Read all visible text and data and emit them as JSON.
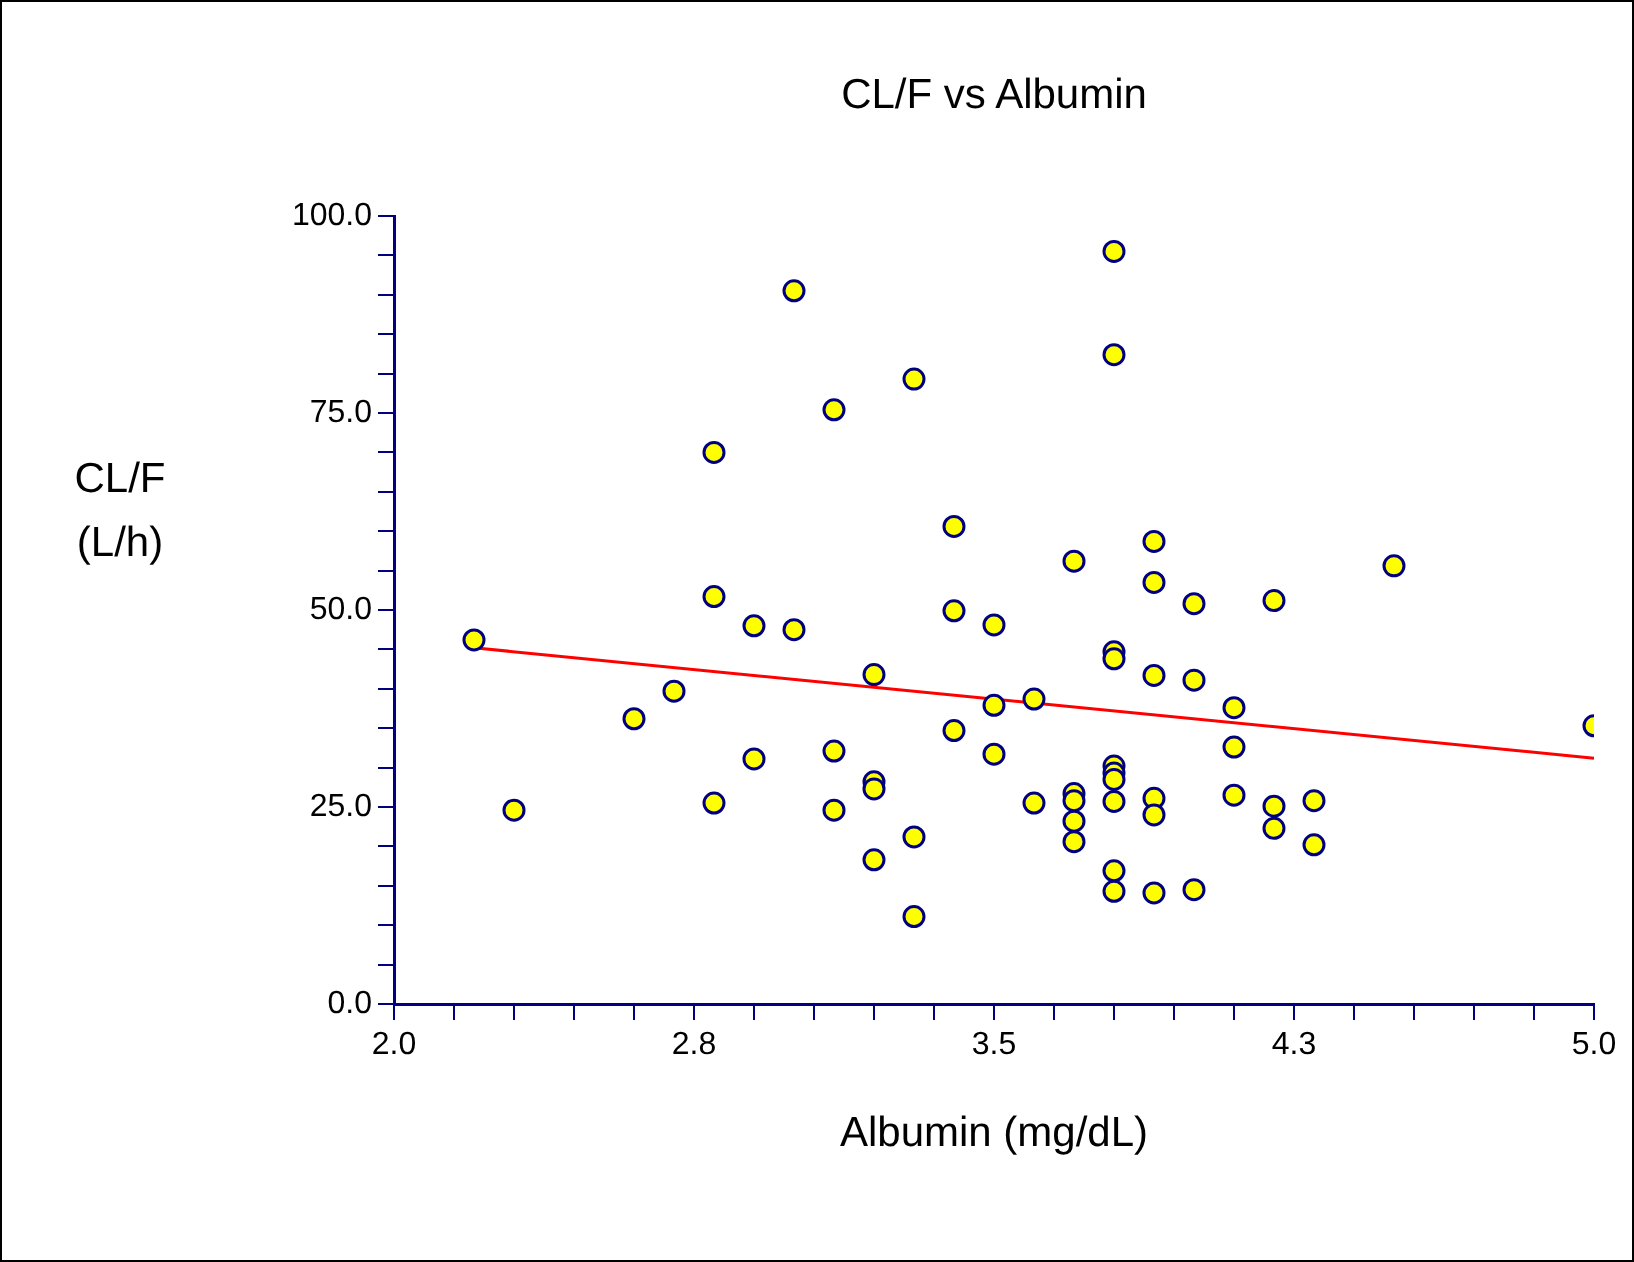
{
  "chart_data": {
    "type": "scatter",
    "title": "CL/F vs Albumin",
    "xlabel": "Albumin (mg/dL)",
    "ylabel": "CL/F\n(L/h)",
    "xlim": [
      2.0,
      5.0
    ],
    "ylim": [
      0,
      100
    ],
    "xticks": [
      {
        "value": 2.0,
        "label": "2.0"
      },
      {
        "value": 2.15,
        "label": null
      },
      {
        "value": 2.3,
        "label": null
      },
      {
        "value": 2.45,
        "label": null
      },
      {
        "value": 2.6,
        "label": null
      },
      {
        "value": 2.75,
        "label": "2.8"
      },
      {
        "value": 2.9,
        "label": null
      },
      {
        "value": 3.05,
        "label": null
      },
      {
        "value": 3.2,
        "label": null
      },
      {
        "value": 3.35,
        "label": null
      },
      {
        "value": 3.5,
        "label": "3.5"
      },
      {
        "value": 3.65,
        "label": null
      },
      {
        "value": 3.8,
        "label": null
      },
      {
        "value": 3.95,
        "label": null
      },
      {
        "value": 4.1,
        "label": null
      },
      {
        "value": 4.25,
        "label": "4.3"
      },
      {
        "value": 4.4,
        "label": null
      },
      {
        "value": 4.55,
        "label": null
      },
      {
        "value": 4.7,
        "label": null
      },
      {
        "value": 4.85,
        "label": null
      },
      {
        "value": 5.0,
        "label": "5.0"
      }
    ],
    "yticks": [
      {
        "value": 0,
        "label": "0.0"
      },
      {
        "value": 5,
        "label": null
      },
      {
        "value": 10,
        "label": null
      },
      {
        "value": 15,
        "label": null
      },
      {
        "value": 20,
        "label": null
      },
      {
        "value": 25,
        "label": "25.0"
      },
      {
        "value": 30,
        "label": null
      },
      {
        "value": 35,
        "label": null
      },
      {
        "value": 40,
        "label": null
      },
      {
        "value": 45,
        "label": null
      },
      {
        "value": 50,
        "label": "50.0"
      },
      {
        "value": 55,
        "label": null
      },
      {
        "value": 60,
        "label": null
      },
      {
        "value": 65,
        "label": null
      },
      {
        "value": 70,
        "label": null
      },
      {
        "value": 75,
        "label": "75.0"
      },
      {
        "value": 80,
        "label": null
      },
      {
        "value": 85,
        "label": null
      },
      {
        "value": 90,
        "label": null
      },
      {
        "value": 95,
        "label": null
      },
      {
        "value": 100,
        "label": "100.0"
      }
    ],
    "grid": false,
    "legend": false,
    "marker": "circle",
    "series": [
      {
        "type": "scatter",
        "color": "#ffff00",
        "x": [
          3.0,
          3.3,
          3.1,
          2.8,
          3.4,
          2.8,
          3.4,
          3.8,
          3.8,
          3.9,
          3.7,
          4.5,
          3.9,
          4.0,
          4.2,
          2.2,
          2.9,
          3.0,
          3.5,
          3.2,
          2.7,
          2.6,
          3.5,
          3.4,
          2.9,
          3.1,
          3.5,
          3.2,
          3.2,
          2.3,
          2.8,
          3.1,
          3.3,
          3.2,
          3.3,
          3.8,
          3.8,
          3.9,
          4.0,
          3.6,
          4.1,
          5.0,
          4.1,
          3.8,
          3.8,
          3.8,
          3.7,
          3.7,
          3.6,
          3.8,
          3.9,
          3.9,
          4.1,
          4.2,
          4.3,
          3.7,
          3.7,
          4.2,
          4.3,
          3.8,
          3.8,
          3.9,
          4.0
        ],
        "values": [
          90.5,
          79.3,
          75.4,
          70.0,
          60.6,
          51.7,
          49.9,
          95.5,
          82.4,
          58.7,
          56.2,
          55.6,
          53.5,
          50.8,
          51.2,
          46.2,
          48.0,
          47.5,
          48.1,
          41.8,
          39.7,
          36.2,
          37.9,
          34.7,
          31.1,
          32.1,
          31.7,
          28.2,
          27.3,
          24.6,
          25.5,
          24.6,
          21.2,
          18.3,
          11.1,
          44.7,
          43.8,
          41.7,
          41.1,
          38.7,
          37.6,
          35.3,
          32.6,
          30.2,
          29.3,
          28.5,
          26.7,
          25.8,
          25.5,
          25.7,
          26.1,
          24.0,
          26.5,
          25.1,
          25.8,
          23.2,
          20.6,
          22.3,
          20.2,
          16.9,
          14.3,
          14.1,
          14.5
        ]
      },
      {
        "type": "line",
        "color": "#ff0000",
        "marker": "none",
        "x": [
          2.2,
          5.0
        ],
        "values": [
          45.2,
          31.2
        ]
      }
    ]
  }
}
